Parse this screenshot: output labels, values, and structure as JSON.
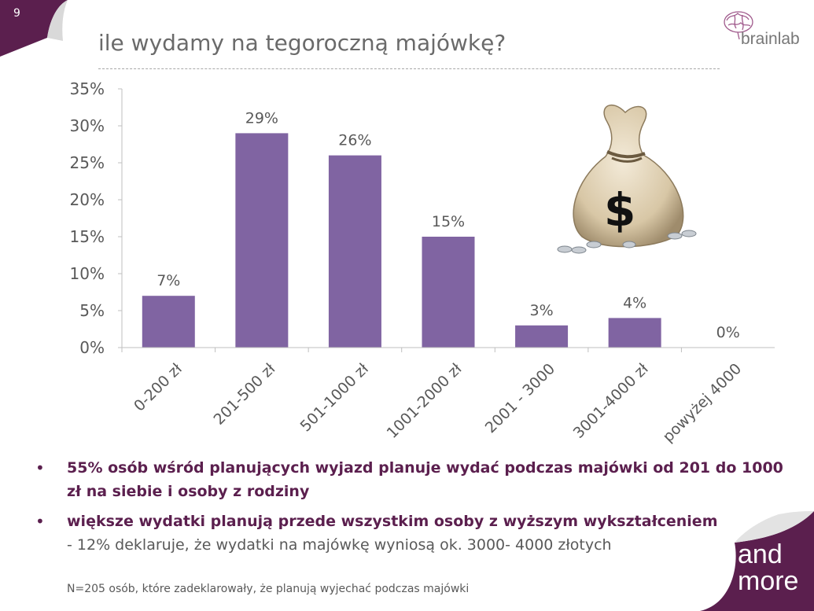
{
  "slide": {
    "number": "9",
    "title": "ile wydamy na tegoroczną majówkę?",
    "logo_text": "brainlab",
    "corner_text_line1": "and",
    "corner_text_line2": "more",
    "accent_color": "#5b1f4e",
    "bar_color": "#8064a2"
  },
  "chart_data": {
    "type": "bar",
    "categories": [
      "0-200 zł",
      "201-500 zł",
      "501-1000 zł",
      "1001-2000 zł",
      "2001 - 3000",
      "3001-4000 zł",
      "powyżej 4000"
    ],
    "values": [
      7,
      29,
      26,
      15,
      3,
      4,
      0
    ],
    "value_labels": [
      "7%",
      "29%",
      "26%",
      "15%",
      "3%",
      "4%",
      "0%"
    ],
    "y_ticks": [
      "0%",
      "5%",
      "10%",
      "15%",
      "20%",
      "25%",
      "30%",
      "35%"
    ],
    "ylim": [
      0,
      35
    ],
    "grid": false,
    "legend": "none"
  },
  "bullets": [
    {
      "text": "55% osób wśród planujących wyjazd planuje wydać podczas majówki od 201 do 1000 zł na siebie i osoby z rodziny",
      "sub": ""
    },
    {
      "text": "większe wydatki planują przede wszystkim osoby z wyższym wykształceniem",
      "sub": "- 12% deklaruje, że wydatki na majówkę wyniosą ok. 3000- 4000 złotych"
    }
  ],
  "footnote": "N=205 osób, które zadeklarowały, że planują wyjechać podczas majówki",
  "icons": {
    "money_bag": "money-bag-icon",
    "brain": "brain-icon"
  }
}
